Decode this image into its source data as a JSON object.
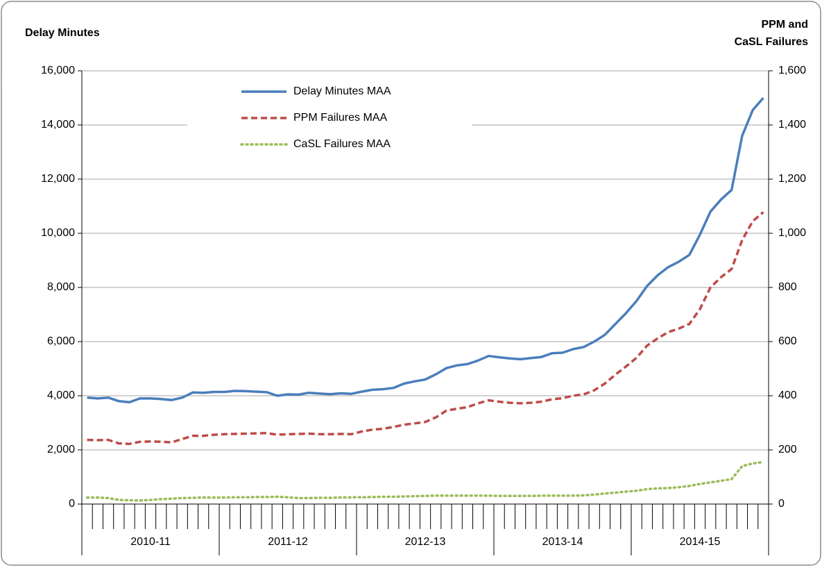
{
  "chart_data": {
    "type": "line",
    "y_title": "Delay Minutes",
    "y2_title_lines": [
      "PPM and",
      "CaSL Failures"
    ],
    "categories": [
      null,
      null,
      null,
      null,
      null,
      null,
      null,
      null,
      null,
      null,
      null,
      null,
      null,
      null,
      null,
      null,
      null,
      null,
      null,
      null,
      null,
      null,
      null,
      null,
      null,
      null,
      null,
      null,
      null,
      null,
      null,
      null,
      null,
      null,
      null,
      null,
      null,
      null,
      null,
      null,
      null,
      null,
      null,
      null,
      null,
      null,
      null,
      null,
      null,
      null,
      null,
      null,
      null,
      null,
      null,
      null,
      null,
      null,
      null,
      null,
      null,
      null,
      null,
      null,
      null
    ],
    "x_groups": [
      "2010-11",
      "2011-12",
      "2012-13",
      "2013-14",
      "2014-15"
    ],
    "ylim": [
      0,
      16000
    ],
    "yticks": [
      0,
      {
        "value": 2000,
        "label": "2,000"
      },
      {
        "value": 4000,
        "label": "4,000"
      },
      {
        "value": 6000,
        "label": "6,000"
      },
      {
        "value": 8000,
        "label": "8,000"
      },
      {
        "value": 10000,
        "label": "10,000"
      },
      {
        "value": 12000,
        "label": "12,000"
      },
      {
        "value": 14000,
        "label": "14,000"
      },
      {
        "value": 16000,
        "label": "16,000"
      }
    ],
    "y2lim": [
      0,
      1600
    ],
    "y2ticks": [
      0,
      200,
      400,
      600,
      800,
      {
        "value": 1000,
        "label": "1,000"
      },
      {
        "value": 1200,
        "label": "1,200"
      },
      {
        "value": 1400,
        "label": "1,400"
      },
      {
        "value": 1600,
        "label": "1,600"
      }
    ],
    "grid": true,
    "legend": "upper center",
    "series": [
      {
        "name": "Delay Minutes MAA",
        "color": "#4a7ebb",
        "dash": "solid",
        "values": [
          3930,
          3900,
          3930,
          3800,
          3760,
          3900,
          3900,
          3880,
          3840,
          3930,
          4120,
          4110,
          4140,
          4140,
          4180,
          4170,
          4150,
          4130,
          4000,
          4050,
          4040,
          4110,
          4080,
          4060,
          4090,
          4070,
          4150,
          4220,
          4240,
          4290,
          4450,
          4530,
          4600,
          4790,
          5020,
          5120,
          5170,
          5300,
          5470,
          5420,
          5380,
          5350,
          5390,
          5430,
          5570,
          5590,
          5720,
          5800,
          6000,
          6250,
          6650,
          7050,
          7500,
          8050,
          8450,
          8750,
          8950,
          9200,
          9950,
          10800,
          11250,
          11600,
          13600,
          14550,
          15000
        ]
      },
      {
        "name": "PPM Failures MAA",
        "color": "#be4b48",
        "dash": "dashed",
        "axis": "y2",
        "values": [
          237,
          236,
          237,
          224,
          222,
          230,
          231,
          230,
          228,
          240,
          252,
          252,
          256,
          258,
          259,
          260,
          261,
          262,
          256,
          258,
          259,
          260,
          258,
          258,
          259,
          258,
          268,
          275,
          278,
          285,
          293,
          298,
          303,
          320,
          345,
          352,
          358,
          372,
          383,
          378,
          374,
          372,
          374,
          378,
          387,
          391,
          400,
          405,
          420,
          445,
          478,
          508,
          540,
          585,
          612,
          635,
          648,
          665,
          720,
          800,
          838,
          868,
          975,
          1045,
          1078
        ]
      },
      {
        "name": "CaSL Failures MAA",
        "color": "#9bbb59",
        "dash": "dotted",
        "axis": "y2",
        "values": [
          24,
          24,
          22,
          15,
          14,
          13,
          15,
          18,
          20,
          22,
          23,
          24,
          24,
          24,
          25,
          25,
          26,
          26,
          27,
          25,
          22,
          22,
          23,
          23,
          24,
          25,
          25,
          26,
          27,
          27,
          28,
          29,
          30,
          31,
          31,
          31,
          31,
          31,
          31,
          30,
          30,
          30,
          30,
          31,
          31,
          31,
          31,
          32,
          35,
          39,
          42,
          46,
          49,
          55,
          58,
          59,
          62,
          67,
          74,
          80,
          86,
          92,
          140,
          150,
          155
        ]
      }
    ]
  }
}
